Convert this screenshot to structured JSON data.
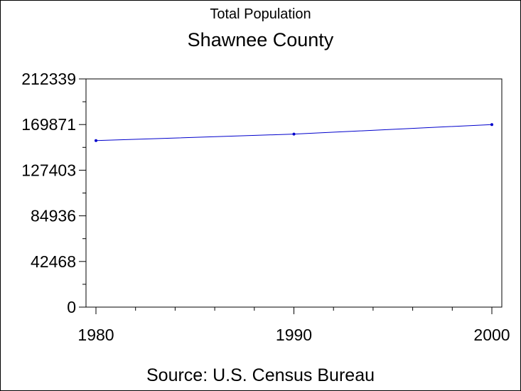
{
  "chart_data": {
    "type": "line",
    "title": "Shawnee County",
    "subtitle": "Total Population",
    "footnote": "Source: U.S. Census Bureau",
    "x": [
      1980,
      1990,
      2000
    ],
    "x_tick_labels": [
      "1980",
      "1990",
      "2000"
    ],
    "xlim": [
      1980,
      2000
    ],
    "series": [
      {
        "values": [
          154916,
          160976,
          169871
        ]
      }
    ],
    "y_tick_labels": [
      "212339",
      "169871",
      "127403",
      "84936",
      "42468",
      "0"
    ],
    "y_ticks": [
      212339,
      169871,
      127403,
      84936,
      42468,
      0
    ],
    "ylim": [
      0,
      212339
    ],
    "grid": false,
    "line_color": "#0000cc",
    "marker_color": "#0000cc"
  }
}
